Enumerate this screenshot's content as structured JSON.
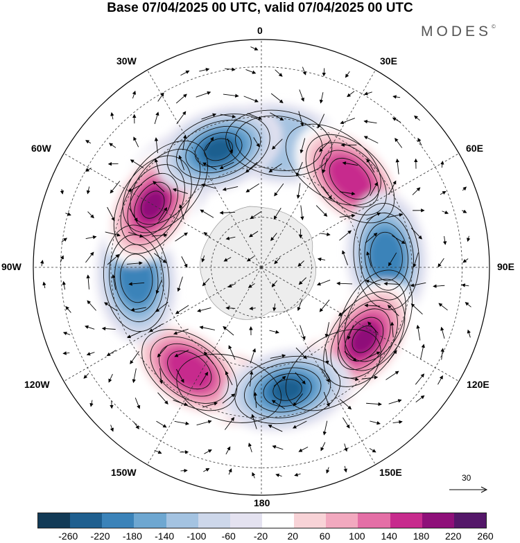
{
  "title": "Base 07/04/2025 00 UTC, valid 07/04/2025 00 UTC",
  "logo": "MODES",
  "logo_mark": "©",
  "longitude_labels": [
    "0",
    "30E",
    "60E",
    "90E",
    "120E",
    "150E",
    "180",
    "150W",
    "120W",
    "90W",
    "60W",
    "30W"
  ],
  "reference_vector": "30",
  "colorbar": {
    "colors": [
      "#123a56",
      "#1f5f8f",
      "#3b83b9",
      "#6ea7d1",
      "#a4c3e1",
      "#cdd7ea",
      "#e4e2f0",
      "#ffffff",
      "#f8d3d7",
      "#f2a9bf",
      "#e46fa6",
      "#c72b8d",
      "#8e1079",
      "#541769"
    ],
    "ticks": [
      "-260",
      "-220",
      "-180",
      "-140",
      "-100",
      "-60",
      "-20",
      "20",
      "60",
      "100",
      "140",
      "180",
      "220",
      "260"
    ]
  },
  "anomaly_centers": [
    {
      "lon": 8,
      "type": "negative",
      "strength": 2
    },
    {
      "lon": 35,
      "type": "positive",
      "strength": 1
    },
    {
      "lon": 45,
      "type": "positive",
      "strength": 4
    },
    {
      "lon": 85,
      "type": "negative",
      "strength": 4
    },
    {
      "lon": 125,
      "type": "positive",
      "strength": 5
    },
    {
      "lon": 115,
      "type": "positive",
      "strength": 2
    },
    {
      "lon": 168,
      "type": "negative",
      "strength": 5
    },
    {
      "lon": 145,
      "type": "positive",
      "strength": 1
    },
    {
      "lon": 215,
      "type": "positive",
      "strength": 4
    },
    {
      "lon": 195,
      "type": "positive",
      "strength": 1
    },
    {
      "lon": 265,
      "type": "negative",
      "strength": 4
    },
    {
      "lon": 300,
      "type": "positive",
      "strength": 5
    },
    {
      "lon": 340,
      "type": "negative",
      "strength": 5
    },
    {
      "lon": 310,
      "type": "negative",
      "strength": 2
    }
  ]
}
